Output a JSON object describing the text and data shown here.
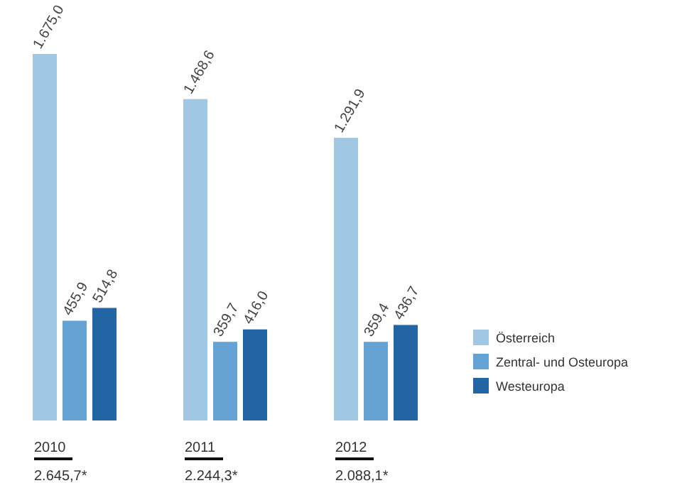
{
  "chart_data": {
    "type": "bar",
    "categories": [
      "2010",
      "2011",
      "2012"
    ],
    "series": [
      {
        "name": "Österreich",
        "color": "#a0c8e2",
        "values": [
          1675.0,
          1468.6,
          1291.9
        ],
        "value_labels": [
          "1.675,0",
          "1.468,6",
          "1.291,9"
        ]
      },
      {
        "name": "Zentral- und Osteuropa",
        "color": "#64a3d3",
        "values": [
          455.9,
          359.7,
          359.4
        ],
        "value_labels": [
          "455,9",
          "359,7",
          "359,4"
        ]
      },
      {
        "name": "Westeuropa",
        "color": "#2166a2",
        "values": [
          514.8,
          416.0,
          436.7
        ],
        "value_labels": [
          "514,8",
          "416,0",
          "436,7"
        ]
      }
    ],
    "annotations": [
      "2.645,7*",
      "2.244,3*",
      "2.088,1*"
    ],
    "legend": "right",
    "grid": false
  }
}
